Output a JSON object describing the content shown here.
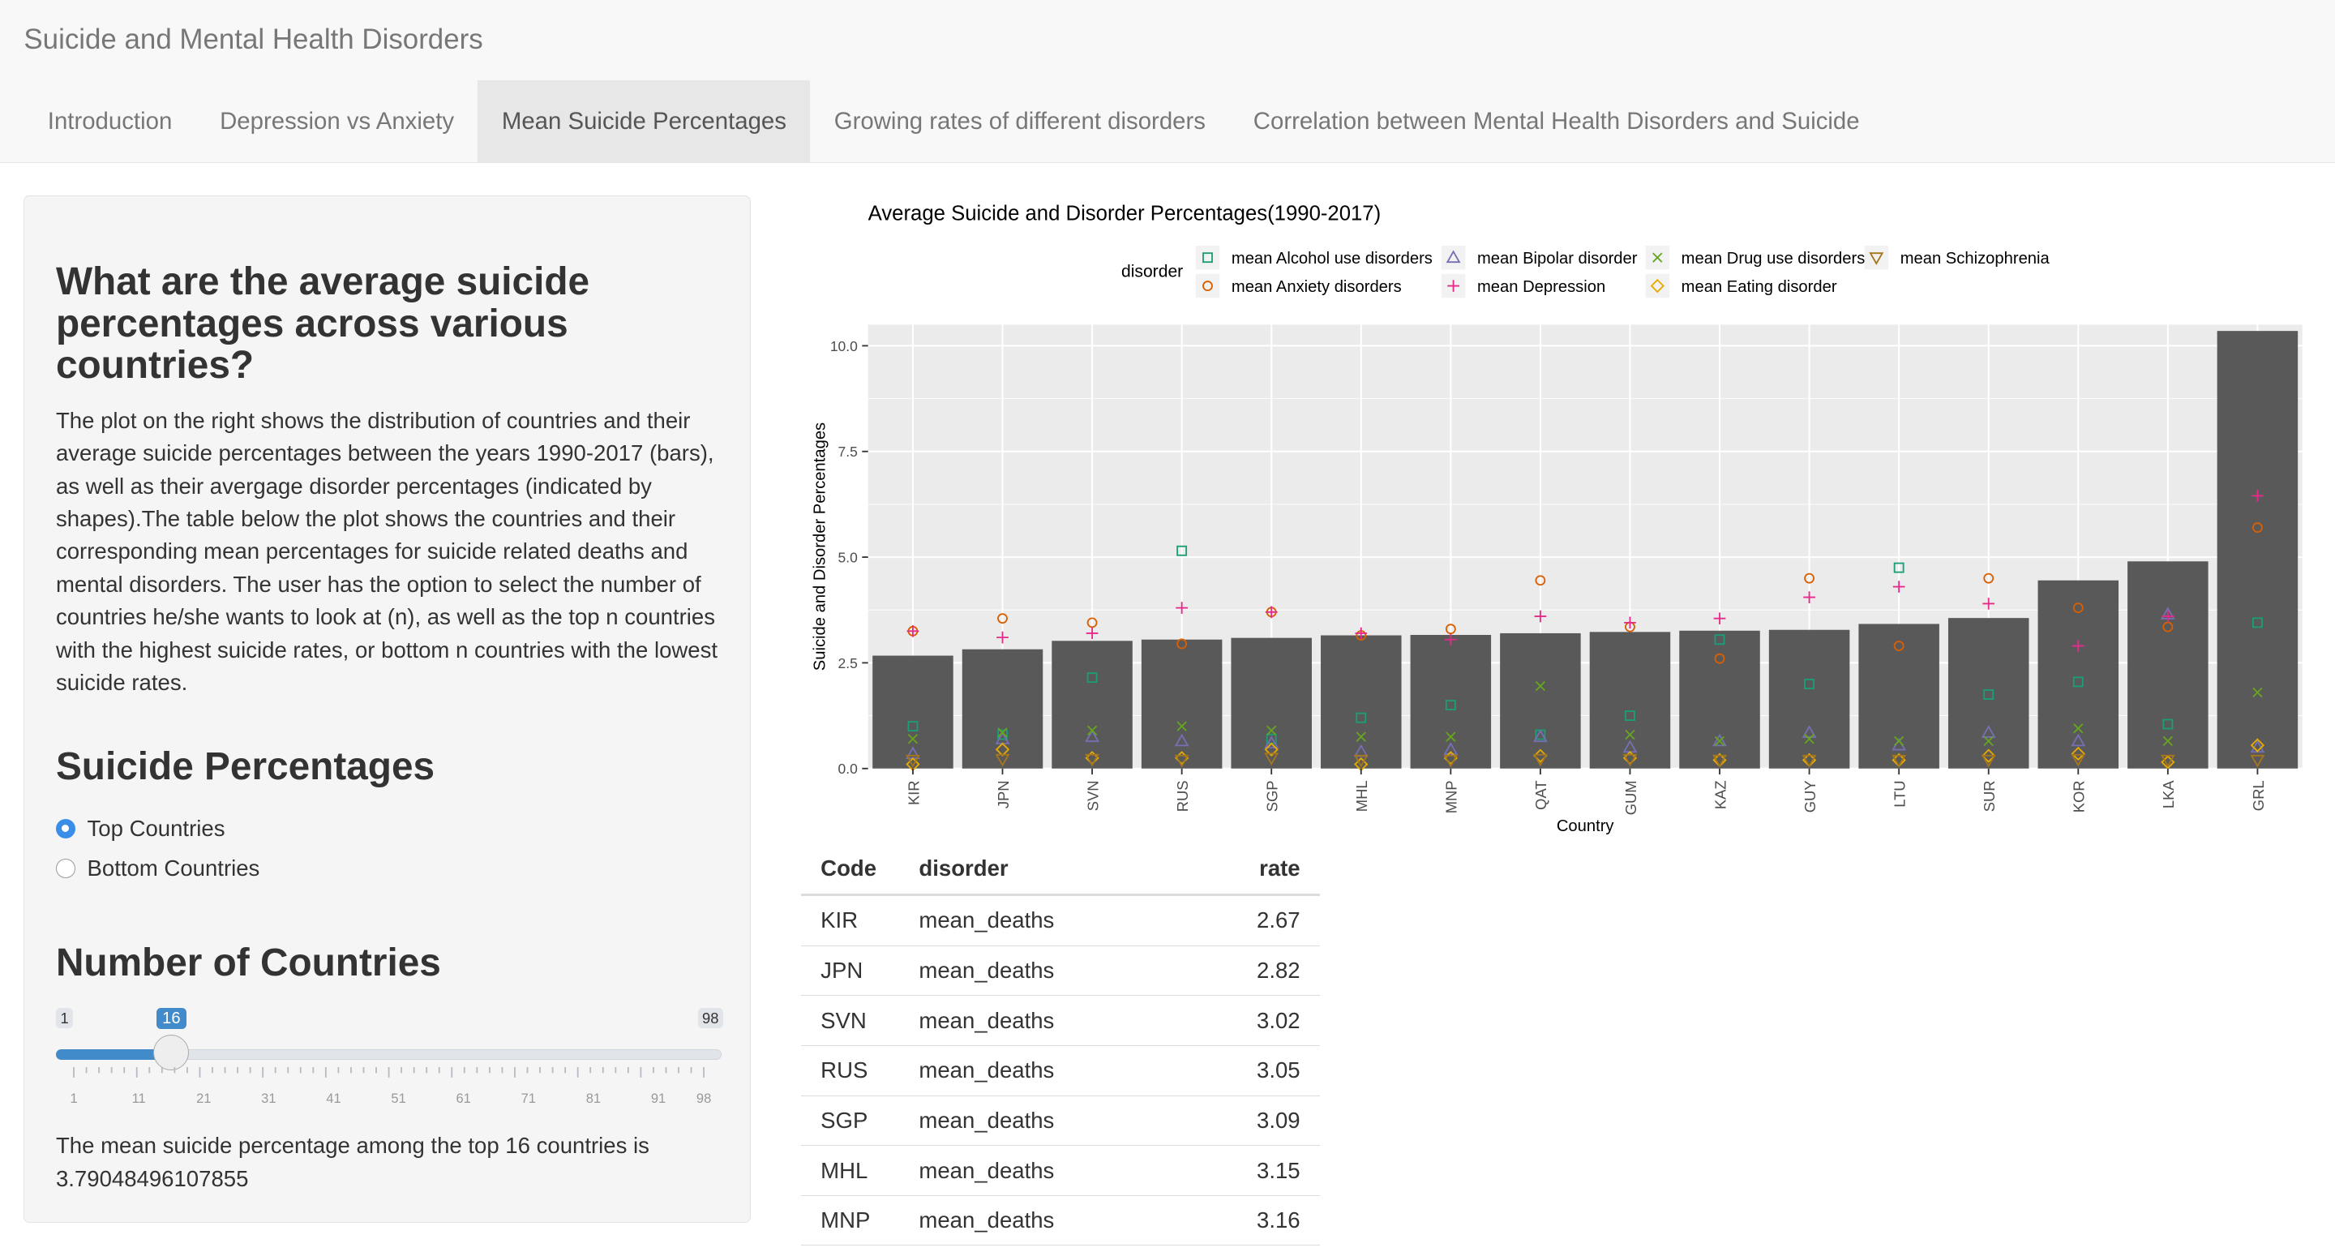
{
  "app": {
    "title": "Suicide and Mental Health Disorders"
  },
  "tabs": [
    {
      "label": "Introduction",
      "active": false
    },
    {
      "label": "Depression vs Anxiety",
      "active": false
    },
    {
      "label": "Mean Suicide Percentages",
      "active": true
    },
    {
      "label": "Growing rates of different disorders",
      "active": false
    },
    {
      "label": "Correlation between Mental Health Disorders and Suicide",
      "active": false
    }
  ],
  "sidebar": {
    "question": "What are the average suicide percentages across various countries?",
    "description": "The plot on the right shows the distribution of countries and their average suicide percentages between the years 1990-2017 (bars), as well as their avergage disorder percentages (indicated by shapes).The table below the plot shows the countries and their corresponding mean percentages for suicide related deaths and mental disorders. The user has the option to select the number of countries he/she wants to look at (n), as well as the top n countries with the highest suicide rates, or bottom n countries with the lowest suicide rates.",
    "percent_heading": "Suicide Percentages",
    "radio": [
      {
        "label": "Top Countries",
        "checked": true
      },
      {
        "label": "Bottom Countries",
        "checked": false
      }
    ],
    "number_heading": "Number of Countries",
    "slider": {
      "min": 1,
      "max": 98,
      "value": 16,
      "ticks": [
        "1",
        "11",
        "21",
        "31",
        "41",
        "51",
        "61",
        "71",
        "81",
        "91",
        "98"
      ]
    },
    "result_text": "The mean suicide percentage among the top 16 countries is 3.79048496107855"
  },
  "colors": {
    "alcohol": "#1b9e77",
    "anxiety": "#d95f02",
    "bipolar": "#7570b3",
    "depression": "#e7298a",
    "drug": "#66a61e",
    "eating": "#e6ab02",
    "schizo": "#a6761d",
    "bar": "#595959",
    "panel": "#ebebeb"
  },
  "chart_data": {
    "type": "bar",
    "title": "Average Suicide and Disorder Percentages(1990-2017)",
    "xlabel": "Country",
    "ylabel": "Suicide and Disorder Percentages",
    "ylim": [
      0,
      10.5
    ],
    "yticks": [
      "0.0",
      "2.5",
      "5.0",
      "7.5",
      "10.0"
    ],
    "legend_title": "disorder",
    "legend_position": "top",
    "categories": [
      "KIR",
      "JPN",
      "SVN",
      "RUS",
      "SGP",
      "MHL",
      "MNP",
      "QAT",
      "GUM",
      "KAZ",
      "GUY",
      "LTU",
      "SUR",
      "KOR",
      "LKA",
      "GRL"
    ],
    "values": [
      2.67,
      2.82,
      3.02,
      3.05,
      3.09,
      3.15,
      3.16,
      3.2,
      3.23,
      3.26,
      3.28,
      3.42,
      3.56,
      4.45,
      4.9,
      10.35
    ],
    "series": [
      {
        "name": "mean Alcohol use disorders",
        "shape": "square",
        "color_key": "alcohol",
        "values": [
          1.0,
          0.8,
          2.15,
          5.15,
          0.7,
          1.2,
          1.5,
          0.8,
          1.25,
          3.05,
          2.0,
          4.75,
          1.75,
          2.05,
          1.05,
          3.45
        ]
      },
      {
        "name": "mean Anxiety disorders",
        "shape": "circle",
        "color_key": "anxiety",
        "values": [
          3.25,
          3.55,
          3.45,
          2.95,
          3.7,
          3.15,
          3.3,
          4.45,
          3.35,
          2.6,
          4.5,
          2.9,
          4.5,
          3.8,
          3.35,
          5.7
        ]
      },
      {
        "name": "mean Bipolar disorder",
        "shape": "triangle",
        "color_key": "bipolar",
        "values": [
          0.35,
          0.7,
          0.75,
          0.65,
          0.6,
          0.4,
          0.45,
          0.75,
          0.5,
          0.65,
          0.85,
          0.55,
          0.85,
          0.65,
          3.65,
          0.5
        ]
      },
      {
        "name": "mean Depression",
        "shape": "plus",
        "color_key": "depression",
        "values": [
          3.25,
          3.1,
          3.2,
          3.8,
          3.7,
          3.2,
          3.05,
          3.6,
          3.45,
          3.55,
          4.05,
          4.3,
          3.9,
          2.9,
          3.6,
          6.45
        ]
      },
      {
        "name": "mean Drug use disorders",
        "shape": "x",
        "color_key": "drug",
        "values": [
          0.7,
          0.85,
          0.9,
          1.0,
          0.9,
          0.75,
          0.75,
          1.95,
          0.8,
          0.65,
          0.7,
          0.65,
          0.65,
          0.95,
          0.65,
          1.8
        ]
      },
      {
        "name": "mean Eating disorder",
        "shape": "diamond",
        "color_key": "eating",
        "values": [
          0.1,
          0.45,
          0.25,
          0.25,
          0.45,
          0.1,
          0.25,
          0.3,
          0.25,
          0.2,
          0.2,
          0.2,
          0.3,
          0.35,
          0.15,
          0.55
        ]
      },
      {
        "name": "mean Schizophrenia",
        "shape": "triangle-down",
        "color_key": "schizo",
        "values": [
          0.2,
          0.22,
          0.22,
          0.2,
          0.25,
          0.2,
          0.2,
          0.22,
          0.22,
          0.2,
          0.2,
          0.2,
          0.2,
          0.22,
          0.2,
          0.2
        ]
      }
    ]
  },
  "table": {
    "headers": [
      "Code",
      "disorder",
      "rate"
    ],
    "rows": [
      [
        "KIR",
        "mean_deaths",
        "2.67"
      ],
      [
        "JPN",
        "mean_deaths",
        "2.82"
      ],
      [
        "SVN",
        "mean_deaths",
        "3.02"
      ],
      [
        "RUS",
        "mean_deaths",
        "3.05"
      ],
      [
        "SGP",
        "mean_deaths",
        "3.09"
      ],
      [
        "MHL",
        "mean_deaths",
        "3.15"
      ],
      [
        "MNP",
        "mean_deaths",
        "3.16"
      ]
    ]
  }
}
